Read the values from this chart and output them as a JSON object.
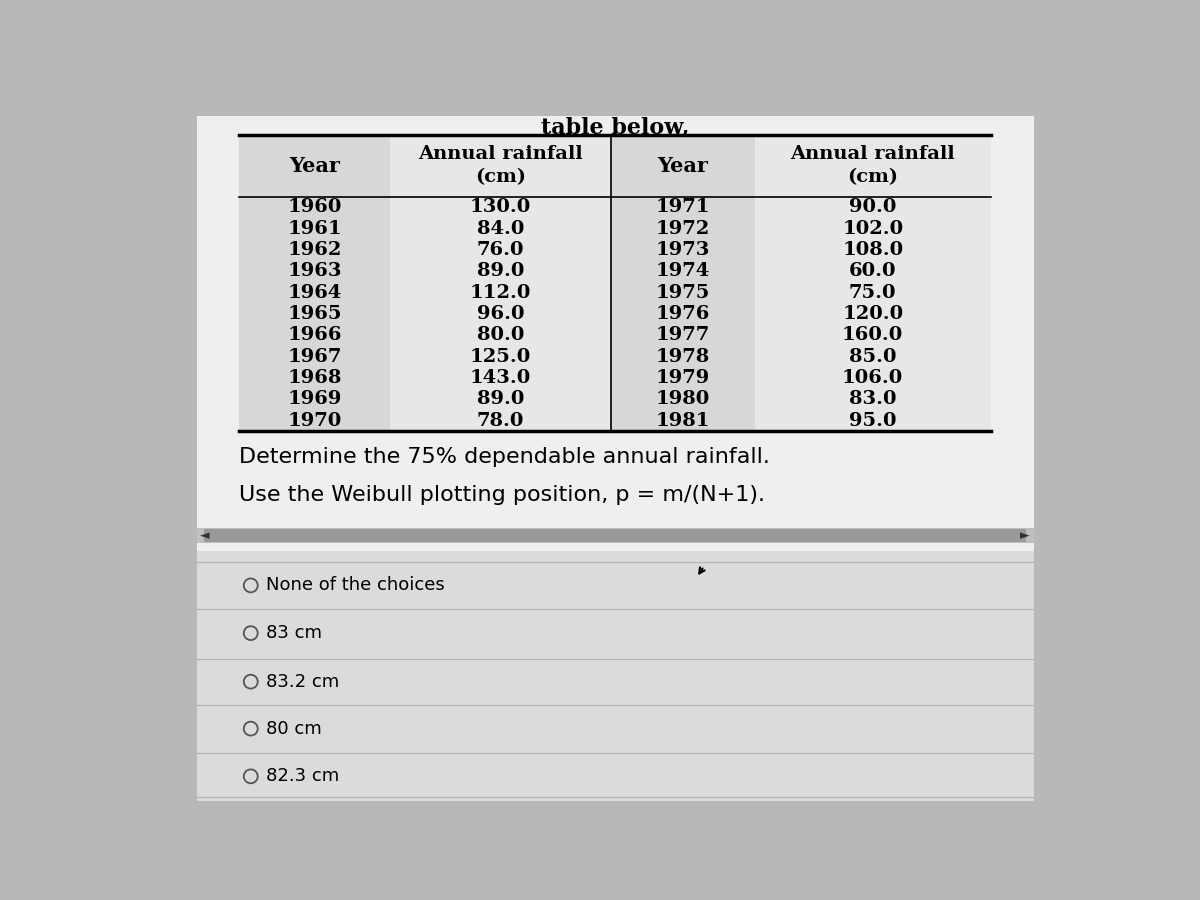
{
  "outer_bg": "#b8b8b8",
  "content_bg": "#f0efef",
  "table_year_col_bg": "#d8d6d6",
  "table_rain_col_bg": "#e8e7e7",
  "choices_bg": "#e8e7e7",
  "scrollbar_bg": "#9a9898",
  "header_left": [
    "Year",
    "Annual rainfall\n(cm)"
  ],
  "header_right": [
    "Year",
    "Annual rainfall\n(cm)"
  ],
  "left_data": [
    [
      "1960",
      "130.0"
    ],
    [
      "1961",
      "84.0"
    ],
    [
      "1962",
      "76.0"
    ],
    [
      "1963",
      "89.0"
    ],
    [
      "1964",
      "112.0"
    ],
    [
      "1965",
      "96.0"
    ],
    [
      "1966",
      "80.0"
    ],
    [
      "1967",
      "125.0"
    ],
    [
      "1968",
      "143.0"
    ],
    [
      "1969",
      "89.0"
    ],
    [
      "1970",
      "78.0"
    ]
  ],
  "right_data": [
    [
      "1971",
      "90.0"
    ],
    [
      "1972",
      "102.0"
    ],
    [
      "1973",
      "108.0"
    ],
    [
      "1974",
      "60.0"
    ],
    [
      "1975",
      "75.0"
    ],
    [
      "1976",
      "120.0"
    ],
    [
      "1977",
      "160.0"
    ],
    [
      "1978",
      "85.0"
    ],
    [
      "1979",
      "106.0"
    ],
    [
      "1980",
      "83.0"
    ],
    [
      "1981",
      "95.0"
    ]
  ],
  "question_line1": "Determine the 75% dependable annual rainfall.",
  "question_line2": "Use the Weibull plotting position, p = m/(N+1).",
  "choices": [
    "None of the choices",
    "83 cm",
    "83.2 cm",
    "80 cm",
    "82.3 cm"
  ],
  "top_text": "table below,"
}
